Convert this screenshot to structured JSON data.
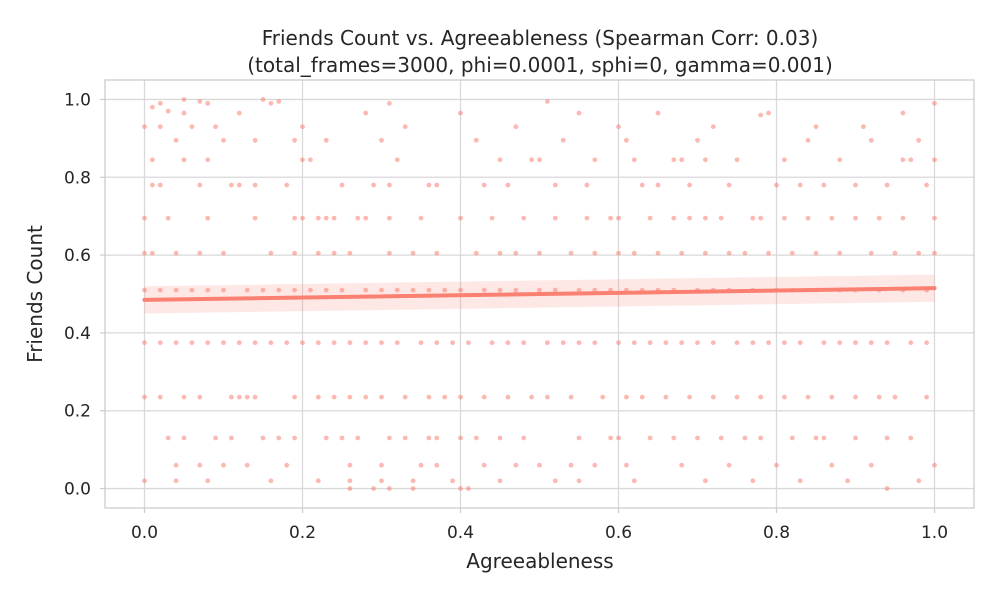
{
  "chart_data": {
    "type": "scatter",
    "title_lines": [
      "Friends Count vs. Agreeableness (Spearman Corr: 0.03)",
      "(total_frames=3000, phi=0.0001, sphi=0, gamma=0.001)"
    ],
    "xlabel": "Agreeableness",
    "ylabel": "Friends Count",
    "xlim": [
      -0.05,
      1.05
    ],
    "ylim": [
      -0.05,
      1.05
    ],
    "x_ticks": [
      0.0,
      0.2,
      0.4,
      0.6,
      0.8,
      1.0
    ],
    "x_tick_labels": [
      "0.0",
      "0.2",
      "0.4",
      "0.6",
      "0.8",
      "1.0"
    ],
    "y_ticks": [
      0.0,
      0.2,
      0.4,
      0.6,
      0.8,
      1.0
    ],
    "y_tick_labels": [
      "0.0",
      "0.2",
      "0.4",
      "0.6",
      "0.8",
      "1.0"
    ],
    "grid": true,
    "point_color": "#fa8072",
    "line_color": "#fa8072",
    "y_levels": [
      0.0,
      0.02,
      0.06,
      0.13,
      0.235,
      0.375,
      0.51,
      0.605,
      0.695,
      0.78,
      0.845,
      0.895,
      0.93,
      0.965,
      0.99
    ],
    "points": [
      [
        0.0,
        0.93
      ],
      [
        0.01,
        0.98
      ],
      [
        0.02,
        0.99
      ],
      [
        0.03,
        0.97
      ],
      [
        0.05,
        1.0
      ],
      [
        0.07,
        0.995
      ],
      [
        0.08,
        0.99
      ],
      [
        0.15,
        1.0
      ],
      [
        0.16,
        0.99
      ],
      [
        0.17,
        0.995
      ],
      [
        0.31,
        0.99
      ],
      [
        0.51,
        0.995
      ],
      [
        0.78,
        0.96
      ],
      [
        1.0,
        0.99
      ],
      [
        0.02,
        0.93
      ],
      [
        0.05,
        0.965
      ],
      [
        0.06,
        0.93
      ],
      [
        0.09,
        0.93
      ],
      [
        0.12,
        0.965
      ],
      [
        0.14,
        0.895
      ],
      [
        0.2,
        0.93
      ],
      [
        0.23,
        0.895
      ],
      [
        0.28,
        0.965
      ],
      [
        0.33,
        0.93
      ],
      [
        0.4,
        0.965
      ],
      [
        0.47,
        0.93
      ],
      [
        0.55,
        0.965
      ],
      [
        0.6,
        0.93
      ],
      [
        0.65,
        0.965
      ],
      [
        0.72,
        0.93
      ],
      [
        0.79,
        0.965
      ],
      [
        0.85,
        0.93
      ],
      [
        0.91,
        0.93
      ],
      [
        0.96,
        0.965
      ],
      [
        0.04,
        0.895
      ],
      [
        0.1,
        0.895
      ],
      [
        0.19,
        0.895
      ],
      [
        0.3,
        0.895
      ],
      [
        0.42,
        0.895
      ],
      [
        0.53,
        0.895
      ],
      [
        0.61,
        0.895
      ],
      [
        0.7,
        0.895
      ],
      [
        0.84,
        0.895
      ],
      [
        0.92,
        0.895
      ],
      [
        0.98,
        0.895
      ],
      [
        0.01,
        0.845
      ],
      [
        0.05,
        0.845
      ],
      [
        0.08,
        0.845
      ],
      [
        0.2,
        0.845
      ],
      [
        0.21,
        0.845
      ],
      [
        0.32,
        0.845
      ],
      [
        0.45,
        0.845
      ],
      [
        0.49,
        0.845
      ],
      [
        0.5,
        0.845
      ],
      [
        0.57,
        0.845
      ],
      [
        0.62,
        0.845
      ],
      [
        0.67,
        0.845
      ],
      [
        0.68,
        0.845
      ],
      [
        0.71,
        0.845
      ],
      [
        0.75,
        0.845
      ],
      [
        0.81,
        0.845
      ],
      [
        0.88,
        0.845
      ],
      [
        0.96,
        0.845
      ],
      [
        0.97,
        0.845
      ],
      [
        1.0,
        0.845
      ],
      [
        0.01,
        0.78
      ],
      [
        0.02,
        0.78
      ],
      [
        0.07,
        0.78
      ],
      [
        0.11,
        0.78
      ],
      [
        0.12,
        0.78
      ],
      [
        0.14,
        0.78
      ],
      [
        0.18,
        0.78
      ],
      [
        0.25,
        0.78
      ],
      [
        0.29,
        0.78
      ],
      [
        0.31,
        0.78
      ],
      [
        0.36,
        0.78
      ],
      [
        0.37,
        0.78
      ],
      [
        0.43,
        0.78
      ],
      [
        0.46,
        0.78
      ],
      [
        0.52,
        0.78
      ],
      [
        0.56,
        0.78
      ],
      [
        0.63,
        0.78
      ],
      [
        0.65,
        0.78
      ],
      [
        0.69,
        0.78
      ],
      [
        0.74,
        0.78
      ],
      [
        0.8,
        0.78
      ],
      [
        0.83,
        0.78
      ],
      [
        0.86,
        0.78
      ],
      [
        0.9,
        0.78
      ],
      [
        0.94,
        0.78
      ],
      [
        0.99,
        0.78
      ],
      [
        0.0,
        0.695
      ],
      [
        0.03,
        0.695
      ],
      [
        0.08,
        0.695
      ],
      [
        0.14,
        0.695
      ],
      [
        0.19,
        0.695
      ],
      [
        0.2,
        0.695
      ],
      [
        0.22,
        0.695
      ],
      [
        0.23,
        0.695
      ],
      [
        0.24,
        0.695
      ],
      [
        0.27,
        0.695
      ],
      [
        0.28,
        0.695
      ],
      [
        0.31,
        0.695
      ],
      [
        0.35,
        0.695
      ],
      [
        0.4,
        0.695
      ],
      [
        0.44,
        0.695
      ],
      [
        0.48,
        0.695
      ],
      [
        0.52,
        0.695
      ],
      [
        0.56,
        0.695
      ],
      [
        0.59,
        0.695
      ],
      [
        0.6,
        0.695
      ],
      [
        0.64,
        0.695
      ],
      [
        0.67,
        0.695
      ],
      [
        0.69,
        0.695
      ],
      [
        0.71,
        0.695
      ],
      [
        0.73,
        0.695
      ],
      [
        0.77,
        0.695
      ],
      [
        0.78,
        0.695
      ],
      [
        0.81,
        0.695
      ],
      [
        0.84,
        0.695
      ],
      [
        0.87,
        0.695
      ],
      [
        0.9,
        0.695
      ],
      [
        0.93,
        0.695
      ],
      [
        0.96,
        0.695
      ],
      [
        1.0,
        0.695
      ],
      [
        0.0,
        0.605
      ],
      [
        0.01,
        0.605
      ],
      [
        0.04,
        0.605
      ],
      [
        0.07,
        0.605
      ],
      [
        0.1,
        0.605
      ],
      [
        0.16,
        0.605
      ],
      [
        0.19,
        0.605
      ],
      [
        0.22,
        0.605
      ],
      [
        0.24,
        0.605
      ],
      [
        0.26,
        0.605
      ],
      [
        0.31,
        0.605
      ],
      [
        0.34,
        0.605
      ],
      [
        0.37,
        0.605
      ],
      [
        0.42,
        0.605
      ],
      [
        0.45,
        0.605
      ],
      [
        0.47,
        0.605
      ],
      [
        0.5,
        0.605
      ],
      [
        0.54,
        0.605
      ],
      [
        0.57,
        0.605
      ],
      [
        0.6,
        0.605
      ],
      [
        0.62,
        0.605
      ],
      [
        0.65,
        0.605
      ],
      [
        0.68,
        0.605
      ],
      [
        0.71,
        0.605
      ],
      [
        0.74,
        0.605
      ],
      [
        0.76,
        0.605
      ],
      [
        0.79,
        0.605
      ],
      [
        0.82,
        0.605
      ],
      [
        0.85,
        0.605
      ],
      [
        0.88,
        0.605
      ],
      [
        0.92,
        0.605
      ],
      [
        0.95,
        0.605
      ],
      [
        0.98,
        0.605
      ],
      [
        1.0,
        0.605
      ],
      [
        0.0,
        0.51
      ],
      [
        0.02,
        0.51
      ],
      [
        0.04,
        0.51
      ],
      [
        0.06,
        0.51
      ],
      [
        0.08,
        0.51
      ],
      [
        0.1,
        0.51
      ],
      [
        0.13,
        0.51
      ],
      [
        0.15,
        0.51
      ],
      [
        0.17,
        0.51
      ],
      [
        0.19,
        0.51
      ],
      [
        0.21,
        0.51
      ],
      [
        0.23,
        0.51
      ],
      [
        0.25,
        0.51
      ],
      [
        0.28,
        0.51
      ],
      [
        0.3,
        0.51
      ],
      [
        0.32,
        0.51
      ],
      [
        0.34,
        0.51
      ],
      [
        0.36,
        0.51
      ],
      [
        0.38,
        0.51
      ],
      [
        0.4,
        0.51
      ],
      [
        0.43,
        0.51
      ],
      [
        0.45,
        0.51
      ],
      [
        0.47,
        0.51
      ],
      [
        0.5,
        0.51
      ],
      [
        0.52,
        0.51
      ],
      [
        0.55,
        0.51
      ],
      [
        0.57,
        0.51
      ],
      [
        0.59,
        0.51
      ],
      [
        0.61,
        0.51
      ],
      [
        0.63,
        0.51
      ],
      [
        0.65,
        0.51
      ],
      [
        0.67,
        0.51
      ],
      [
        0.7,
        0.51
      ],
      [
        0.72,
        0.51
      ],
      [
        0.74,
        0.51
      ],
      [
        0.77,
        0.51
      ],
      [
        0.8,
        0.51
      ],
      [
        0.82,
        0.51
      ],
      [
        0.85,
        0.51
      ],
      [
        0.88,
        0.51
      ],
      [
        0.9,
        0.51
      ],
      [
        0.93,
        0.51
      ],
      [
        0.96,
        0.51
      ],
      [
        0.99,
        0.51
      ],
      [
        0.0,
        0.375
      ],
      [
        0.02,
        0.375
      ],
      [
        0.04,
        0.375
      ],
      [
        0.06,
        0.375
      ],
      [
        0.08,
        0.375
      ],
      [
        0.1,
        0.375
      ],
      [
        0.12,
        0.375
      ],
      [
        0.14,
        0.375
      ],
      [
        0.16,
        0.375
      ],
      [
        0.18,
        0.375
      ],
      [
        0.2,
        0.375
      ],
      [
        0.22,
        0.375
      ],
      [
        0.24,
        0.375
      ],
      [
        0.26,
        0.375
      ],
      [
        0.28,
        0.375
      ],
      [
        0.3,
        0.375
      ],
      [
        0.32,
        0.375
      ],
      [
        0.35,
        0.375
      ],
      [
        0.37,
        0.375
      ],
      [
        0.39,
        0.375
      ],
      [
        0.41,
        0.375
      ],
      [
        0.44,
        0.375
      ],
      [
        0.46,
        0.375
      ],
      [
        0.48,
        0.375
      ],
      [
        0.51,
        0.375
      ],
      [
        0.53,
        0.375
      ],
      [
        0.55,
        0.375
      ],
      [
        0.57,
        0.375
      ],
      [
        0.6,
        0.375
      ],
      [
        0.62,
        0.375
      ],
      [
        0.64,
        0.375
      ],
      [
        0.66,
        0.375
      ],
      [
        0.68,
        0.375
      ],
      [
        0.7,
        0.375
      ],
      [
        0.72,
        0.375
      ],
      [
        0.75,
        0.375
      ],
      [
        0.77,
        0.375
      ],
      [
        0.79,
        0.375
      ],
      [
        0.81,
        0.375
      ],
      [
        0.83,
        0.375
      ],
      [
        0.86,
        0.375
      ],
      [
        0.88,
        0.375
      ],
      [
        0.9,
        0.375
      ],
      [
        0.92,
        0.375
      ],
      [
        0.94,
        0.375
      ],
      [
        0.97,
        0.375
      ],
      [
        0.99,
        0.375
      ],
      [
        0.0,
        0.235
      ],
      [
        0.02,
        0.235
      ],
      [
        0.05,
        0.235
      ],
      [
        0.07,
        0.235
      ],
      [
        0.11,
        0.235
      ],
      [
        0.12,
        0.235
      ],
      [
        0.13,
        0.235
      ],
      [
        0.14,
        0.235
      ],
      [
        0.19,
        0.235
      ],
      [
        0.22,
        0.235
      ],
      [
        0.24,
        0.235
      ],
      [
        0.26,
        0.235
      ],
      [
        0.28,
        0.235
      ],
      [
        0.3,
        0.235
      ],
      [
        0.33,
        0.235
      ],
      [
        0.36,
        0.235
      ],
      [
        0.38,
        0.235
      ],
      [
        0.4,
        0.235
      ],
      [
        0.43,
        0.235
      ],
      [
        0.46,
        0.235
      ],
      [
        0.49,
        0.235
      ],
      [
        0.51,
        0.235
      ],
      [
        0.54,
        0.235
      ],
      [
        0.58,
        0.235
      ],
      [
        0.61,
        0.235
      ],
      [
        0.63,
        0.235
      ],
      [
        0.66,
        0.235
      ],
      [
        0.69,
        0.235
      ],
      [
        0.72,
        0.235
      ],
      [
        0.75,
        0.235
      ],
      [
        0.78,
        0.235
      ],
      [
        0.81,
        0.235
      ],
      [
        0.84,
        0.235
      ],
      [
        0.87,
        0.235
      ],
      [
        0.9,
        0.235
      ],
      [
        0.93,
        0.235
      ],
      [
        0.95,
        0.235
      ],
      [
        0.99,
        0.235
      ],
      [
        0.03,
        0.13
      ],
      [
        0.05,
        0.13
      ],
      [
        0.09,
        0.13
      ],
      [
        0.11,
        0.13
      ],
      [
        0.15,
        0.13
      ],
      [
        0.17,
        0.13
      ],
      [
        0.19,
        0.13
      ],
      [
        0.23,
        0.13
      ],
      [
        0.25,
        0.13
      ],
      [
        0.27,
        0.13
      ],
      [
        0.31,
        0.13
      ],
      [
        0.33,
        0.13
      ],
      [
        0.36,
        0.13
      ],
      [
        0.37,
        0.13
      ],
      [
        0.4,
        0.13
      ],
      [
        0.42,
        0.13
      ],
      [
        0.45,
        0.13
      ],
      [
        0.48,
        0.13
      ],
      [
        0.55,
        0.13
      ],
      [
        0.59,
        0.13
      ],
      [
        0.6,
        0.13
      ],
      [
        0.64,
        0.13
      ],
      [
        0.67,
        0.13
      ],
      [
        0.7,
        0.13
      ],
      [
        0.73,
        0.13
      ],
      [
        0.76,
        0.13
      ],
      [
        0.78,
        0.13
      ],
      [
        0.82,
        0.13
      ],
      [
        0.85,
        0.13
      ],
      [
        0.86,
        0.13
      ],
      [
        0.9,
        0.13
      ],
      [
        0.94,
        0.13
      ],
      [
        0.97,
        0.13
      ],
      [
        0.04,
        0.06
      ],
      [
        0.07,
        0.06
      ],
      [
        0.1,
        0.06
      ],
      [
        0.13,
        0.06
      ],
      [
        0.18,
        0.06
      ],
      [
        0.26,
        0.06
      ],
      [
        0.3,
        0.06
      ],
      [
        0.35,
        0.06
      ],
      [
        0.37,
        0.06
      ],
      [
        0.43,
        0.06
      ],
      [
        0.47,
        0.06
      ],
      [
        0.5,
        0.06
      ],
      [
        0.54,
        0.06
      ],
      [
        0.57,
        0.06
      ],
      [
        0.61,
        0.06
      ],
      [
        0.68,
        0.06
      ],
      [
        0.74,
        0.06
      ],
      [
        0.8,
        0.06
      ],
      [
        0.87,
        0.06
      ],
      [
        0.92,
        0.06
      ],
      [
        1.0,
        0.06
      ],
      [
        0.0,
        0.02
      ],
      [
        0.04,
        0.02
      ],
      [
        0.08,
        0.02
      ],
      [
        0.16,
        0.02
      ],
      [
        0.22,
        0.02
      ],
      [
        0.26,
        0.02
      ],
      [
        0.3,
        0.02
      ],
      [
        0.34,
        0.02
      ],
      [
        0.39,
        0.02
      ],
      [
        0.45,
        0.02
      ],
      [
        0.52,
        0.02
      ],
      [
        0.55,
        0.02
      ],
      [
        0.62,
        0.02
      ],
      [
        0.71,
        0.02
      ],
      [
        0.77,
        0.02
      ],
      [
        0.83,
        0.02
      ],
      [
        0.89,
        0.02
      ],
      [
        0.98,
        0.02
      ],
      [
        0.26,
        0.0
      ],
      [
        0.29,
        0.0
      ],
      [
        0.31,
        0.0
      ],
      [
        0.34,
        0.0
      ],
      [
        0.4,
        0.0
      ],
      [
        0.41,
        0.0
      ],
      [
        0.94,
        0.0
      ]
    ],
    "regression": {
      "x": [
        0.0,
        1.0
      ],
      "y": [
        0.485,
        0.515
      ],
      "ci_lower": [
        0.45,
        0.48
      ],
      "ci_upper": [
        0.52,
        0.55
      ]
    }
  }
}
